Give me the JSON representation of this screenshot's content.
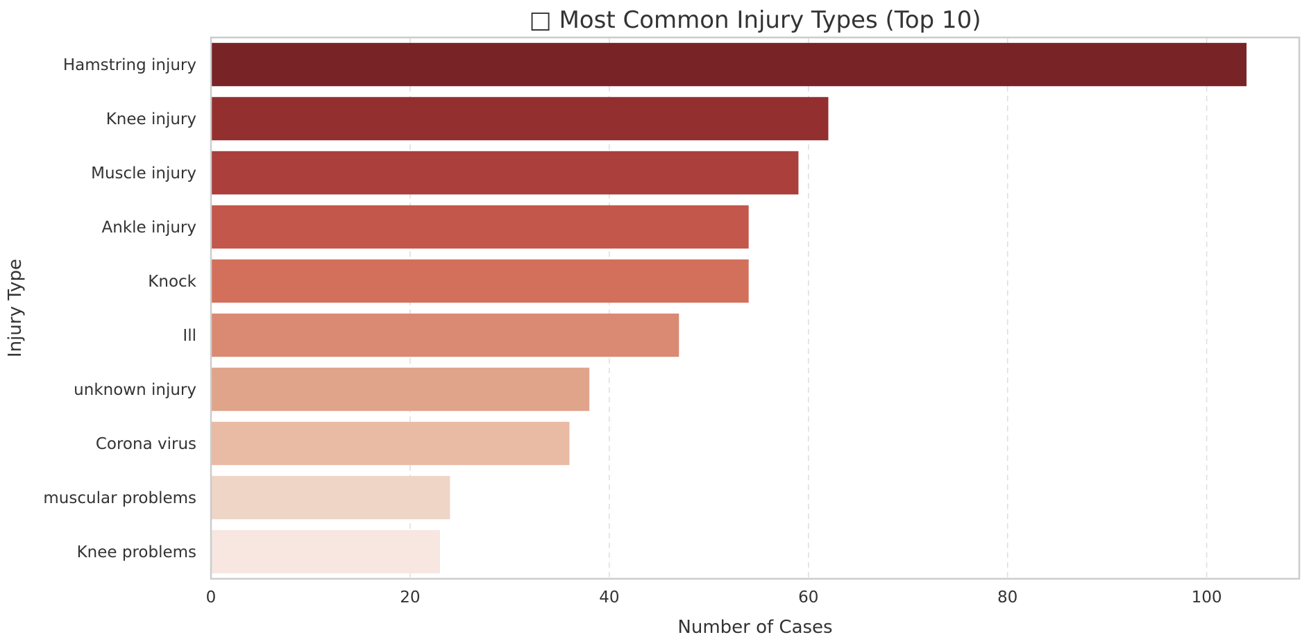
{
  "chart_data": {
    "type": "bar",
    "orientation": "horizontal",
    "title": "□ Most Common Injury Types (Top 10)",
    "xlabel": "Number of Cases",
    "ylabel": "Injury Type",
    "categories": [
      "Hamstring injury",
      "Knee injury",
      "Muscle injury",
      "Ankle injury",
      "Knock",
      "Ill",
      "unknown injury",
      "Corona virus",
      "muscular problems",
      "Knee problems"
    ],
    "values": [
      104,
      62,
      59,
      54,
      54,
      47,
      38,
      36,
      24,
      23
    ],
    "colors": [
      "#782427",
      "#942f30",
      "#ab3f3c",
      "#c3574b",
      "#d3705b",
      "#da8a73",
      "#e0a48b",
      "#e9bba4",
      "#efd5c6",
      "#f7e7e0"
    ],
    "xlim": [
      0,
      109.3
    ],
    "xticks": [
      0,
      20,
      40,
      60,
      80,
      100
    ],
    "grid": "x-dashed",
    "legend": "none"
  }
}
